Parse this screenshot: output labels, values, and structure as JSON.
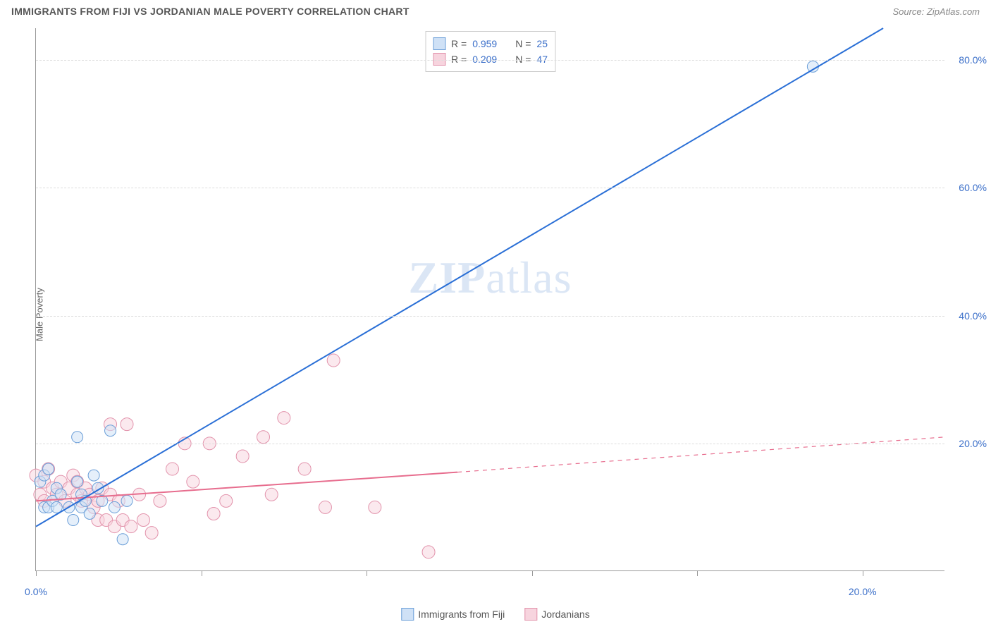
{
  "header": {
    "title": "IMMIGRANTS FROM FIJI VS JORDANIAN MALE POVERTY CORRELATION CHART",
    "source": "Source: ZipAtlas.com"
  },
  "chart": {
    "type": "scatter",
    "y_axis_title": "Male Poverty",
    "x_range": [
      0,
      22
    ],
    "y_range": [
      0,
      85
    ],
    "y_ticks": [
      20,
      40,
      60,
      80
    ],
    "y_tick_labels": [
      "20.0%",
      "40.0%",
      "60.0%",
      "80.0%"
    ],
    "x_ticks": [
      0,
      4,
      8,
      12,
      16,
      20
    ],
    "x_tick_labels": [
      "0.0%",
      "",
      "",
      "",
      "",
      "20.0%"
    ],
    "grid_color": "#dddddd",
    "axis_color": "#999999",
    "background_color": "#ffffff",
    "tick_label_color": "#3b6fc9",
    "y_title_fontsize": 13,
    "tick_fontsize": 14
  },
  "series": {
    "fiji": {
      "label": "Immigrants from Fiji",
      "R": "0.959",
      "N": "25",
      "marker_fill": "#cfe1f6",
      "marker_stroke": "#6a9ed8",
      "marker_radius": 8,
      "fill_opacity": 0.55,
      "line_color": "#2a6fd6",
      "line_width": 2,
      "line_start": [
        0,
        7
      ],
      "line_end": [
        20.5,
        85
      ],
      "points": [
        [
          0.1,
          14
        ],
        [
          0.2,
          10
        ],
        [
          0.2,
          15
        ],
        [
          0.3,
          10
        ],
        [
          0.3,
          16
        ],
        [
          0.4,
          11
        ],
        [
          0.5,
          10
        ],
        [
          0.5,
          13
        ],
        [
          0.6,
          12
        ],
        [
          0.8,
          10
        ],
        [
          0.9,
          8
        ],
        [
          1.0,
          14
        ],
        [
          1.0,
          21
        ],
        [
          1.1,
          10
        ],
        [
          1.1,
          12
        ],
        [
          1.2,
          11
        ],
        [
          1.3,
          9
        ],
        [
          1.4,
          15
        ],
        [
          1.5,
          13
        ],
        [
          1.6,
          11
        ],
        [
          1.8,
          22
        ],
        [
          1.9,
          10
        ],
        [
          2.1,
          5
        ],
        [
          2.2,
          11
        ],
        [
          18.8,
          79
        ]
      ]
    },
    "jordanian": {
      "label": "Jordanians",
      "R": "0.209",
      "N": "47",
      "marker_fill": "#f7d4de",
      "marker_stroke": "#e292ab",
      "marker_radius": 9,
      "fill_opacity": 0.5,
      "line_color": "#e76d8e",
      "line_width": 2,
      "line_solid_start": [
        0,
        11
      ],
      "line_solid_end": [
        10.2,
        15.5
      ],
      "line_dash_end": [
        22,
        21
      ],
      "points": [
        [
          0.0,
          15
        ],
        [
          0.1,
          12
        ],
        [
          0.2,
          14
        ],
        [
          0.2,
          11
        ],
        [
          0.3,
          16
        ],
        [
          0.4,
          13
        ],
        [
          0.5,
          12
        ],
        [
          0.6,
          14
        ],
        [
          0.7,
          11
        ],
        [
          0.8,
          13
        ],
        [
          0.9,
          15
        ],
        [
          1.0,
          12
        ],
        [
          1.0,
          14
        ],
        [
          1.1,
          11
        ],
        [
          1.2,
          13
        ],
        [
          1.3,
          12
        ],
        [
          1.4,
          10
        ],
        [
          1.5,
          8
        ],
        [
          1.5,
          11
        ],
        [
          1.6,
          13
        ],
        [
          1.7,
          8
        ],
        [
          1.8,
          12
        ],
        [
          1.8,
          23
        ],
        [
          1.9,
          7
        ],
        [
          2.0,
          11
        ],
        [
          2.1,
          8
        ],
        [
          2.2,
          23
        ],
        [
          2.3,
          7
        ],
        [
          2.5,
          12
        ],
        [
          2.6,
          8
        ],
        [
          2.8,
          6
        ],
        [
          3.0,
          11
        ],
        [
          3.3,
          16
        ],
        [
          3.6,
          20
        ],
        [
          3.8,
          14
        ],
        [
          4.2,
          20
        ],
        [
          4.3,
          9
        ],
        [
          4.6,
          11
        ],
        [
          5.0,
          18
        ],
        [
          5.5,
          21
        ],
        [
          5.7,
          12
        ],
        [
          6.0,
          24
        ],
        [
          6.5,
          16
        ],
        [
          7.0,
          10
        ],
        [
          7.2,
          33
        ],
        [
          8.2,
          10
        ],
        [
          9.5,
          3
        ]
      ]
    }
  },
  "legend_top": {
    "r_label": "R =",
    "n_label": "N ="
  },
  "watermark": {
    "zip": "ZIP",
    "atlas": "atlas"
  }
}
